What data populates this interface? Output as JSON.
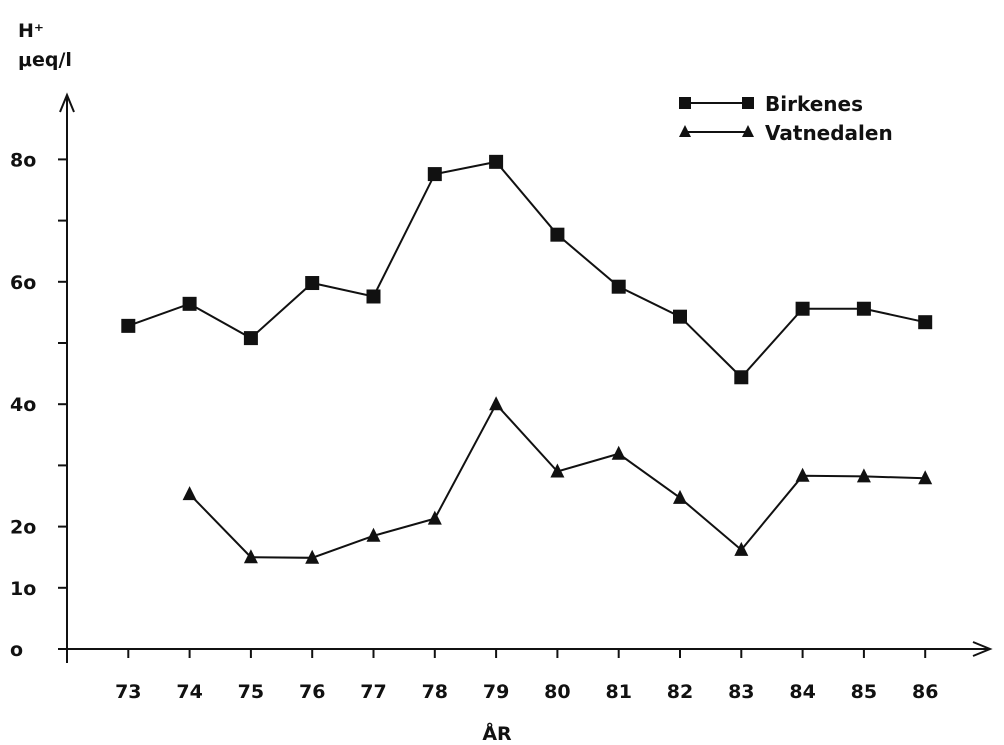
{
  "chart_data": {
    "type": "line",
    "ylabel_lines": [
      "H⁺",
      "μeq/l"
    ],
    "xlabel": "ÅR",
    "x": [
      73,
      74,
      75,
      76,
      77,
      78,
      79,
      80,
      81,
      82,
      83,
      84,
      85,
      86
    ],
    "xlim": [
      72,
      86.8
    ],
    "ylim": [
      0,
      88
    ],
    "y_ticks": [
      0,
      10,
      20,
      30,
      40,
      50,
      60,
      70,
      80
    ],
    "y_tick_labels": [
      "o",
      "1o",
      "2o",
      "",
      "4o",
      "",
      "6o",
      "",
      "8o"
    ],
    "x_tick_labels": [
      "73",
      "74",
      "75",
      "76",
      "77",
      "78",
      "79",
      "80",
      "81",
      "82",
      "83",
      "84",
      "85",
      "86"
    ],
    "grid": false,
    "legend_position": "top-right",
    "series": [
      {
        "name": "Birkenes",
        "marker": "square",
        "x": [
          73,
          74,
          75,
          76,
          77,
          78,
          79,
          80,
          81,
          82,
          83,
          84,
          85,
          86
        ],
        "values": [
          52.8,
          56.4,
          50.8,
          59.8,
          57.6,
          77.6,
          79.6,
          67.7,
          59.2,
          54.3,
          44.4,
          55.6,
          55.6,
          53.4
        ]
      },
      {
        "name": "Vatnedalen",
        "marker": "triangle",
        "x": [
          74,
          75,
          76,
          77,
          78,
          79,
          80,
          81,
          82,
          83,
          84,
          85,
          86
        ],
        "values": [
          25.3,
          15.0,
          14.9,
          18.5,
          21.3,
          40.0,
          29.0,
          31.9,
          24.7,
          16.2,
          28.3,
          28.2,
          27.9
        ]
      }
    ]
  }
}
